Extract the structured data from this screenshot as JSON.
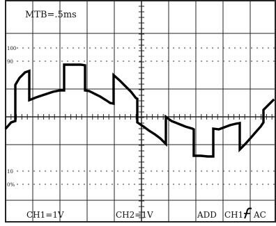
{
  "screen": {
    "timebase_label": "MTB=.5ms",
    "markers": {
      "m100": "100",
      "m90": "90",
      "m10": "10",
      "m0": "0%"
    },
    "bottom_labels": {
      "ch1": "CH1=1V",
      "ch2": "CH2=1V",
      "add": "ADD",
      "trigger_channel": "CH1",
      "trigger_slope_icon": "rising-edge-trigger-icon",
      "coupling": "AC"
    }
  },
  "colors": {
    "background": "#ffffff",
    "graticule": "#222222",
    "trace": "#000000"
  }
}
